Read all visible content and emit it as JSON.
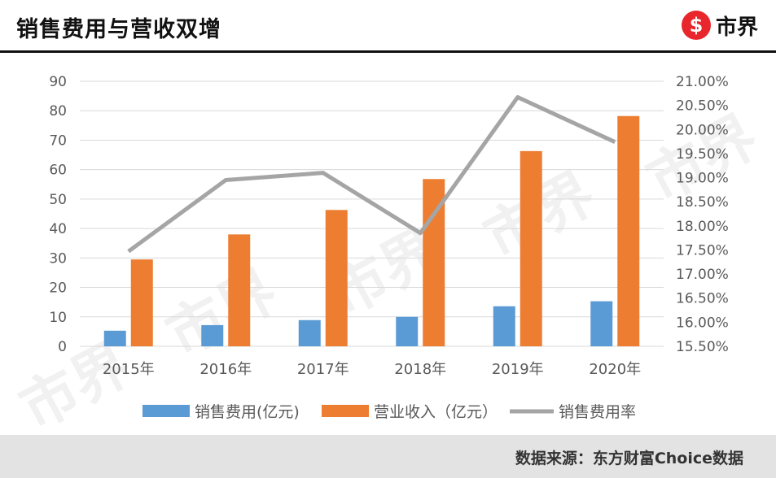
{
  "header": {
    "title": "销售费用与营收双增",
    "logo_mark": "$",
    "logo_text": "市界"
  },
  "footer": {
    "source": "数据来源：东方财富Choice数据"
  },
  "watermark": "市界",
  "colors": {
    "bar1": "#5b9bd5",
    "bar2": "#ed7d31",
    "line": "#a5a5a5",
    "grid": "#d9d9d9",
    "axis_text": "#595959"
  },
  "chart_data": {
    "type": "bar",
    "categories": [
      "2015年",
      "2016年",
      "2017年",
      "2018年",
      "2019年",
      "2020年"
    ],
    "series": [
      {
        "name": "销售费用(亿元)",
        "type": "bar",
        "axis": "left",
        "values": [
          5.3,
          7.2,
          8.9,
          10.0,
          13.6,
          15.3
        ]
      },
      {
        "name": "营业收入（亿元）",
        "type": "bar",
        "axis": "left",
        "values": [
          29.5,
          38.0,
          46.3,
          56.8,
          66.3,
          78.2
        ]
      },
      {
        "name": "销售费用率",
        "type": "line",
        "axis": "right",
        "values": [
          17.47,
          18.95,
          19.1,
          17.85,
          20.67,
          19.74
        ]
      }
    ],
    "ylim": [
      0,
      90
    ],
    "y_ticks": [
      0,
      10,
      20,
      30,
      40,
      50,
      60,
      70,
      80,
      90
    ],
    "y2lim": [
      15.5,
      21.0
    ],
    "y2_ticks": [
      "15.50%",
      "16.00%",
      "16.50%",
      "17.00%",
      "17.50%",
      "18.00%",
      "18.50%",
      "19.00%",
      "19.50%",
      "20.00%",
      "20.50%",
      "21.00%"
    ],
    "grid": true,
    "legend": "bottom"
  }
}
